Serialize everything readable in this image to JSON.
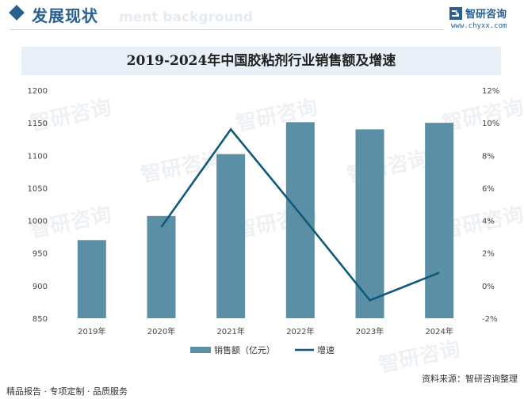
{
  "header": {
    "section_title": "发展现状",
    "ghost_title": "ment background",
    "brand_name": "智研咨询",
    "brand_url": "www.chyxx.com"
  },
  "colors": {
    "bar": "#5b8fa6",
    "line": "#0f5a7a",
    "accent": "#2a5f8f",
    "title_band": "#e9f0f7"
  },
  "chart_data": {
    "type": "bar",
    "title": "2019-2024年中国胶粘剂行业销售额及增速",
    "categories": [
      "2019年",
      "2020年",
      "2021年",
      "2022年",
      "2023年",
      "2024年"
    ],
    "series": [
      {
        "name": "销售额（亿元）",
        "type": "bar",
        "axis": "left",
        "values": [
          970,
          1007,
          1102,
          1151,
          1140,
          1150
        ]
      },
      {
        "name": "增速",
        "type": "line",
        "axis": "right",
        "values": [
          null,
          3.6,
          9.6,
          4.4,
          -0.9,
          0.8
        ]
      }
    ],
    "y_left": {
      "min": 850,
      "max": 1200,
      "ticks": [
        "850",
        "900",
        "950",
        "1000",
        "1050",
        "1100",
        "1150",
        "1200"
      ]
    },
    "y_right": {
      "min": -2,
      "max": 12,
      "ticks": [
        "-2%",
        "0%",
        "2%",
        "4%",
        "6%",
        "8%",
        "10%",
        "12%"
      ]
    },
    "grid": false,
    "legend_position": "bottom"
  },
  "footer": {
    "left": "精品报告 · 专项定制 · 品质服务",
    "right": "资料来源：智研咨询整理"
  }
}
